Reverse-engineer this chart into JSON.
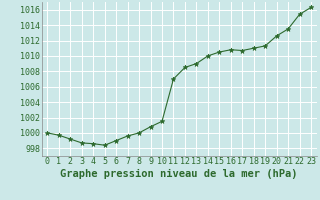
{
  "x": [
    0,
    1,
    2,
    3,
    4,
    5,
    6,
    7,
    8,
    9,
    10,
    11,
    12,
    13,
    14,
    15,
    16,
    17,
    18,
    19,
    20,
    21,
    22,
    23
  ],
  "y": [
    1000.0,
    999.7,
    999.2,
    998.7,
    998.6,
    998.4,
    999.0,
    999.6,
    1000.0,
    1000.8,
    1001.5,
    1007.0,
    1008.5,
    1009.0,
    1010.0,
    1010.5,
    1010.8,
    1010.7,
    1011.0,
    1011.3,
    1012.6,
    1013.5,
    1015.4,
    1016.3
  ],
  "line_color": "#2d6a2d",
  "marker": "*",
  "marker_color": "#2d6a2d",
  "bg_color": "#cce8e8",
  "grid_color": "#ffffff",
  "xlabel": "Graphe pression niveau de la mer (hPa)",
  "xlabel_color": "#2d6a2d",
  "xlabel_fontsize": 7.5,
  "tick_color": "#2d6a2d",
  "tick_fontsize": 6,
  "ylim": [
    997,
    1017
  ],
  "yticks": [
    998,
    1000,
    1002,
    1004,
    1006,
    1008,
    1010,
    1012,
    1014,
    1016
  ],
  "xlim": [
    -0.5,
    23.5
  ],
  "xticks": [
    0,
    1,
    2,
    3,
    4,
    5,
    6,
    7,
    8,
    9,
    10,
    11,
    12,
    13,
    14,
    15,
    16,
    17,
    18,
    19,
    20,
    21,
    22,
    23
  ]
}
